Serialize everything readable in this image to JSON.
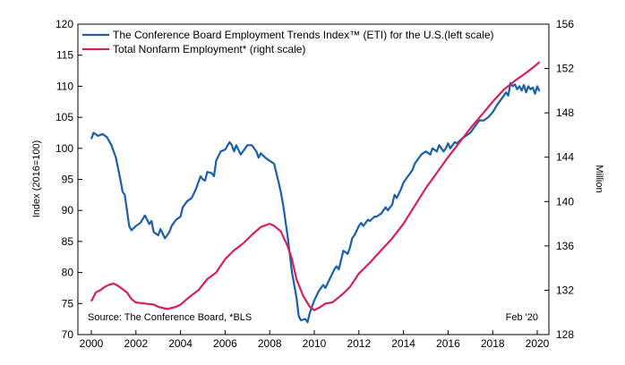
{
  "chart_data": {
    "type": "line",
    "legend_position": "top-left",
    "grid": false,
    "x_ticks": [
      "2000",
      "2002",
      "2004",
      "2006",
      "2008",
      "2010",
      "2012",
      "2014",
      "2016",
      "2018",
      "2020"
    ],
    "left_axis": {
      "label": "Index (2016=100)",
      "ticks": [
        "70",
        "75",
        "80",
        "85",
        "90",
        "95",
        "100",
        "105",
        "110",
        "115",
        "120"
      ],
      "range": [
        70,
        120
      ]
    },
    "right_axis": {
      "label": "Million",
      "ticks": [
        "128",
        "132",
        "136",
        "140",
        "144",
        "148",
        "152",
        "156"
      ],
      "range": [
        128,
        156
      ]
    },
    "x_range": [
      2000,
      2020
    ],
    "source": "Source: The Conference Board, *BLS",
    "date_note": "Feb '20",
    "series": [
      {
        "name": "The Conference Board Employment Trends Index™ (ETI) for the U.S.(left scale)",
        "axis": "left",
        "color": "#1a5fac",
        "points": [
          [
            2000.0,
            101.5
          ],
          [
            2000.1,
            102.5
          ],
          [
            2000.3,
            102.0
          ],
          [
            2000.5,
            102.3
          ],
          [
            2000.7,
            101.8
          ],
          [
            2000.9,
            100.5
          ],
          [
            2001.1,
            98.5
          ],
          [
            2001.3,
            95.0
          ],
          [
            2001.4,
            93.0
          ],
          [
            2001.5,
            92.5
          ],
          [
            2001.6,
            90.0
          ],
          [
            2001.7,
            87.5
          ],
          [
            2001.8,
            86.8
          ],
          [
            2002.0,
            87.5
          ],
          [
            2002.2,
            88.0
          ],
          [
            2002.4,
            89.2
          ],
          [
            2002.5,
            88.5
          ],
          [
            2002.6,
            87.8
          ],
          [
            2002.7,
            88.3
          ],
          [
            2002.8,
            86.5
          ],
          [
            2003.0,
            86.0
          ],
          [
            2003.1,
            87.0
          ],
          [
            2003.3,
            85.5
          ],
          [
            2003.5,
            86.5
          ],
          [
            2003.6,
            87.5
          ],
          [
            2003.8,
            88.5
          ],
          [
            2004.0,
            89.0
          ],
          [
            2004.1,
            90.5
          ],
          [
            2004.3,
            91.5
          ],
          [
            2004.5,
            92.0
          ],
          [
            2004.7,
            93.5
          ],
          [
            2004.9,
            95.5
          ],
          [
            2005.0,
            95.0
          ],
          [
            2005.1,
            94.8
          ],
          [
            2005.2,
            96.2
          ],
          [
            2005.4,
            96.0
          ],
          [
            2005.5,
            95.5
          ],
          [
            2005.6,
            98.0
          ],
          [
            2005.8,
            99.5
          ],
          [
            2006.0,
            99.8
          ],
          [
            2006.2,
            101.0
          ],
          [
            2006.3,
            100.5
          ],
          [
            2006.4,
            99.5
          ],
          [
            2006.5,
            100.5
          ],
          [
            2006.7,
            99.0
          ],
          [
            2006.8,
            99.5
          ],
          [
            2007.0,
            100.5
          ],
          [
            2007.2,
            100.5
          ],
          [
            2007.4,
            99.5
          ],
          [
            2007.5,
            98.5
          ],
          [
            2007.6,
            99.2
          ],
          [
            2007.8,
            98.5
          ],
          [
            2008.0,
            98.0
          ],
          [
            2008.2,
            97.5
          ],
          [
            2008.3,
            96.0
          ],
          [
            2008.4,
            94.5
          ],
          [
            2008.5,
            93.0
          ],
          [
            2008.6,
            91.0
          ],
          [
            2008.8,
            86.0
          ],
          [
            2009.0,
            80.0
          ],
          [
            2009.2,
            76.0
          ],
          [
            2009.3,
            73.0
          ],
          [
            2009.4,
            72.3
          ],
          [
            2009.6,
            72.5
          ],
          [
            2009.7,
            72.0
          ],
          [
            2009.8,
            73.5
          ],
          [
            2010.0,
            75.5
          ],
          [
            2010.2,
            77.0
          ],
          [
            2010.4,
            78.0
          ],
          [
            2010.5,
            77.5
          ],
          [
            2010.7,
            79.0
          ],
          [
            2010.9,
            80.5
          ],
          [
            2011.0,
            81.0
          ],
          [
            2011.1,
            80.5
          ],
          [
            2011.2,
            82.0
          ],
          [
            2011.3,
            83.5
          ],
          [
            2011.5,
            83.0
          ],
          [
            2011.6,
            84.0
          ],
          [
            2011.7,
            85.5
          ],
          [
            2011.8,
            86.0
          ],
          [
            2012.0,
            87.5
          ],
          [
            2012.1,
            88.0
          ],
          [
            2012.2,
            87.5
          ],
          [
            2012.4,
            88.5
          ],
          [
            2012.5,
            88.3
          ],
          [
            2012.7,
            89.0
          ],
          [
            2012.8,
            89.0
          ],
          [
            2013.0,
            89.5
          ],
          [
            2013.2,
            90.5
          ],
          [
            2013.3,
            90.0
          ],
          [
            2013.5,
            91.0
          ],
          [
            2013.6,
            92.5
          ],
          [
            2013.7,
            92.0
          ],
          [
            2013.9,
            93.5
          ],
          [
            2014.0,
            94.5
          ],
          [
            2014.2,
            95.5
          ],
          [
            2014.4,
            96.5
          ],
          [
            2014.5,
            97.5
          ],
          [
            2014.7,
            98.5
          ],
          [
            2014.8,
            99.0
          ],
          [
            2015.0,
            99.5
          ],
          [
            2015.2,
            99.0
          ],
          [
            2015.3,
            100.0
          ],
          [
            2015.5,
            99.5
          ],
          [
            2015.6,
            100.5
          ],
          [
            2015.8,
            99.5
          ],
          [
            2015.9,
            100.0
          ],
          [
            2016.0,
            100.8
          ],
          [
            2016.1,
            100.0
          ],
          [
            2016.3,
            101.0
          ],
          [
            2016.4,
            100.8
          ],
          [
            2016.6,
            101.5
          ],
          [
            2016.8,
            102.0
          ],
          [
            2017.0,
            102.5
          ],
          [
            2017.2,
            103.5
          ],
          [
            2017.4,
            104.5
          ],
          [
            2017.6,
            104.5
          ],
          [
            2017.8,
            105.0
          ],
          [
            2018.0,
            105.8
          ],
          [
            2018.2,
            107.0
          ],
          [
            2018.3,
            107.5
          ],
          [
            2018.5,
            108.5
          ],
          [
            2018.6,
            109.0
          ],
          [
            2018.7,
            108.5
          ],
          [
            2018.8,
            110.5
          ],
          [
            2018.9,
            110.0
          ],
          [
            2019.0,
            110.3
          ],
          [
            2019.1,
            109.5
          ],
          [
            2019.2,
            110.0
          ],
          [
            2019.3,
            109.3
          ],
          [
            2019.4,
            110.2
          ],
          [
            2019.5,
            109.0
          ],
          [
            2019.6,
            110.0
          ],
          [
            2019.7,
            109.5
          ],
          [
            2019.8,
            109.8
          ],
          [
            2019.9,
            108.8
          ],
          [
            2020.0,
            110.0
          ],
          [
            2020.1,
            109.2
          ]
        ]
      },
      {
        "name": "Total Nonfarm Employment* (right scale)",
        "axis": "right",
        "color": "#d6205a",
        "points": [
          [
            2000.0,
            131.0
          ],
          [
            2000.2,
            131.8
          ],
          [
            2000.4,
            132.0
          ],
          [
            2000.6,
            132.3
          ],
          [
            2000.8,
            132.5
          ],
          [
            2001.0,
            132.6
          ],
          [
            2001.2,
            132.4
          ],
          [
            2001.4,
            132.1
          ],
          [
            2001.6,
            131.8
          ],
          [
            2001.8,
            131.2
          ],
          [
            2002.0,
            130.9
          ],
          [
            2002.4,
            130.8
          ],
          [
            2002.8,
            130.7
          ],
          [
            2003.0,
            130.5
          ],
          [
            2003.4,
            130.3
          ],
          [
            2003.8,
            130.5
          ],
          [
            2004.0,
            130.7
          ],
          [
            2004.4,
            131.4
          ],
          [
            2004.8,
            132.0
          ],
          [
            2005.2,
            133.0
          ],
          [
            2005.6,
            133.6
          ],
          [
            2006.0,
            134.8
          ],
          [
            2006.4,
            135.6
          ],
          [
            2006.8,
            136.2
          ],
          [
            2007.2,
            137.0
          ],
          [
            2007.6,
            137.7
          ],
          [
            2008.0,
            138.0
          ],
          [
            2008.2,
            137.8
          ],
          [
            2008.5,
            137.3
          ],
          [
            2008.8,
            136.0
          ],
          [
            2009.0,
            134.8
          ],
          [
            2009.2,
            133.0
          ],
          [
            2009.5,
            131.5
          ],
          [
            2009.8,
            130.5
          ],
          [
            2010.0,
            130.2
          ],
          [
            2010.2,
            130.4
          ],
          [
            2010.5,
            130.8
          ],
          [
            2010.8,
            130.9
          ],
          [
            2011.0,
            131.2
          ],
          [
            2011.3,
            131.7
          ],
          [
            2011.6,
            132.3
          ],
          [
            2012.0,
            133.5
          ],
          [
            2012.5,
            134.5
          ],
          [
            2013.0,
            135.6
          ],
          [
            2013.5,
            136.7
          ],
          [
            2014.0,
            138.0
          ],
          [
            2014.5,
            139.6
          ],
          [
            2015.0,
            141.2
          ],
          [
            2015.5,
            142.6
          ],
          [
            2016.0,
            144.0
          ],
          [
            2016.5,
            145.3
          ],
          [
            2017.0,
            146.6
          ],
          [
            2017.5,
            147.8
          ],
          [
            2018.0,
            149.0
          ],
          [
            2018.5,
            150.1
          ],
          [
            2019.0,
            150.9
          ],
          [
            2019.5,
            151.6
          ],
          [
            2020.0,
            152.4
          ],
          [
            2020.1,
            152.6
          ]
        ]
      }
    ]
  }
}
